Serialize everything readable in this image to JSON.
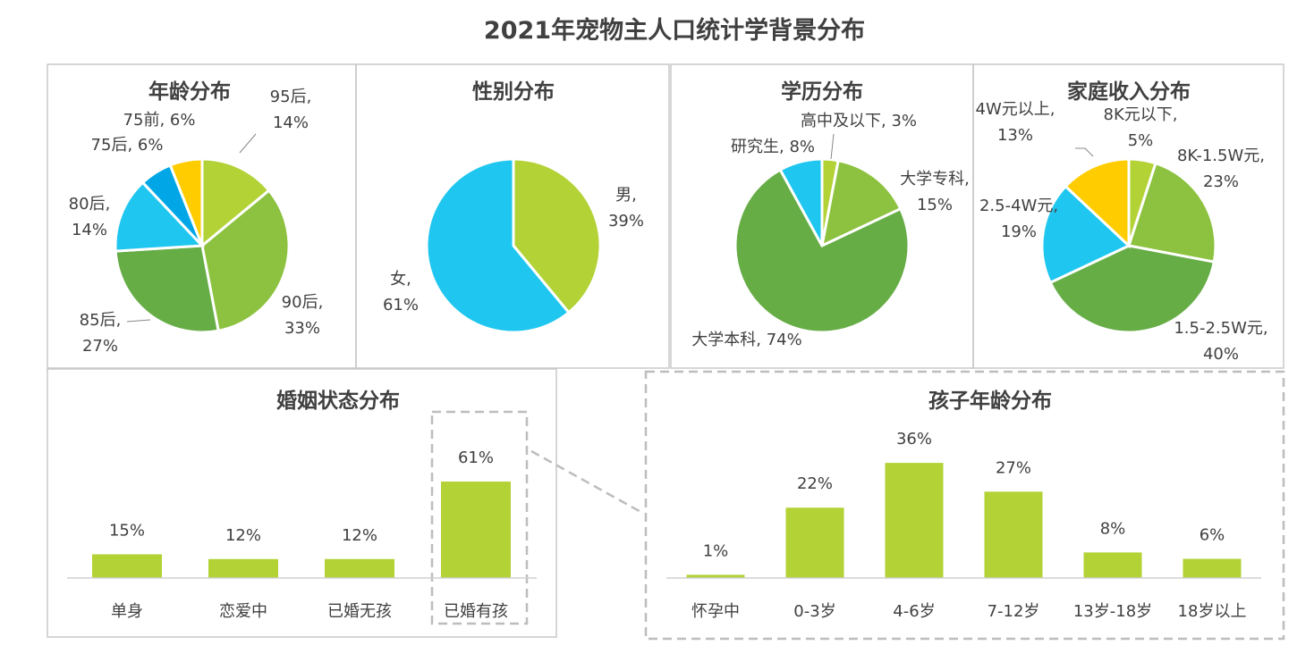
{
  "title": "2021年宠物主人口统计学背景分布",
  "colors": {
    "yellowgreen": "#b2d235",
    "lightgreen": "#8cc23f",
    "green": "#66ad46",
    "cyan": "#1fc6ef",
    "blue": "#00a6e6",
    "yellow": "#ffcc00",
    "bar": "#b2d235"
  },
  "chart_data": [
    {
      "type": "pie",
      "title": "年龄分布",
      "slices": [
        {
          "label": "95后",
          "value": 14,
          "color": "#b2d235"
        },
        {
          "label": "90后",
          "value": 33,
          "color": "#8cc23f"
        },
        {
          "label": "85后",
          "value": 27,
          "color": "#66ad46"
        },
        {
          "label": "80后",
          "value": 14,
          "color": "#1fc6ef"
        },
        {
          "label": "75后",
          "value": 6,
          "color": "#00a6e6"
        },
        {
          "label": "75前",
          "value": 6,
          "color": "#ffcc00"
        }
      ]
    },
    {
      "type": "pie",
      "title": "性别分布",
      "slices": [
        {
          "label": "男",
          "value": 39,
          "color": "#b2d235"
        },
        {
          "label": "女",
          "value": 61,
          "color": "#1fc6ef"
        }
      ]
    },
    {
      "type": "pie",
      "title": "学历分布",
      "slices": [
        {
          "label": "高中及以下",
          "value": 3,
          "color": "#b2d235"
        },
        {
          "label": "大学专科",
          "value": 15,
          "color": "#8cc23f"
        },
        {
          "label": "大学本科",
          "value": 74,
          "color": "#66ad46"
        },
        {
          "label": "研究生",
          "value": 8,
          "color": "#1fc6ef"
        }
      ]
    },
    {
      "type": "pie",
      "title": "家庭收入分布",
      "slices": [
        {
          "label": "8K元以下",
          "value": 5,
          "color": "#b2d235"
        },
        {
          "label": "8K-1.5W元",
          "value": 23,
          "color": "#8cc23f"
        },
        {
          "label": "1.5-2.5W元",
          "value": 40,
          "color": "#66ad46"
        },
        {
          "label": "2.5-4W元",
          "value": 19,
          "color": "#1fc6ef"
        },
        {
          "label": "4W元以上",
          "value": 13,
          "color": "#ffcc00"
        }
      ]
    },
    {
      "type": "bar",
      "title": "婚姻状态分布",
      "categories": [
        "单身",
        "恋爱中",
        "已婚无孩",
        "已婚有孩"
      ],
      "values": [
        15,
        12,
        12,
        61
      ],
      "unit": "%",
      "highlight": "已婚有孩"
    },
    {
      "type": "bar",
      "title": "孩子年龄分布",
      "categories": [
        "怀孕中",
        "0-3岁",
        "4-6岁",
        "7-12岁",
        "13岁-18岁",
        "18岁以上"
      ],
      "values": [
        1,
        22,
        36,
        27,
        8,
        6
      ],
      "unit": "%"
    }
  ]
}
